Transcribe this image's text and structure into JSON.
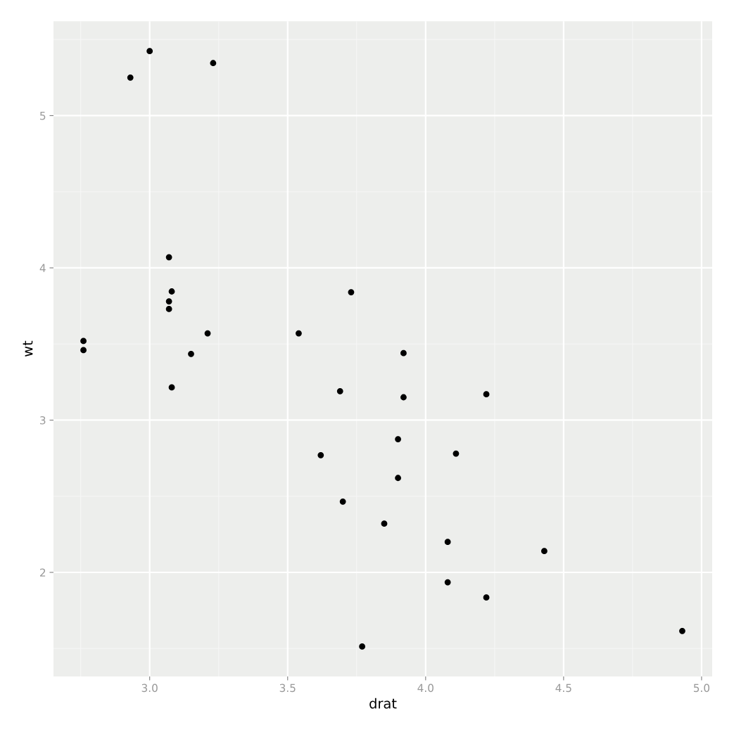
{
  "chart_data": {
    "type": "scatter",
    "xlabel": "drat",
    "ylabel": "wt",
    "x": [
      3.9,
      3.9,
      3.85,
      3.08,
      2.76,
      3.21,
      3.69,
      3.92,
      3.92,
      3.07,
      3.07,
      3.07,
      2.93,
      3.0,
      3.23,
      4.08,
      4.93,
      4.22,
      3.7,
      2.76,
      3.15,
      3.73,
      3.08,
      4.08,
      4.43,
      3.77,
      4.22,
      3.62,
      3.54,
      4.11
    ],
    "series": [
      {
        "color": "#000000",
        "values": [
          2.62,
          2.875,
          2.32,
          3.215,
          3.46,
          3.57,
          3.19,
          3.15,
          3.44,
          4.07,
          3.73,
          3.78,
          5.25,
          5.424,
          5.345,
          2.2,
          1.615,
          1.835,
          2.465,
          3.52,
          3.435,
          3.84,
          3.845,
          1.935,
          2.14,
          1.513,
          3.17,
          2.77,
          3.57,
          2.78
        ]
      }
    ],
    "xlim": [
      2.6515,
      5.0385
    ],
    "ylim": [
      1.317,
      5.62
    ],
    "xticks": [
      {
        "value": 3,
        "label": "3.0"
      },
      {
        "value": 3.5,
        "label": "3.5"
      },
      {
        "value": 4,
        "label": "4.0"
      },
      {
        "value": 4.5,
        "label": "4.5"
      },
      {
        "value": 5,
        "label": "5.0"
      }
    ],
    "yticks": [
      2,
      3,
      4,
      5
    ],
    "grid": true,
    "marker": "circle"
  }
}
